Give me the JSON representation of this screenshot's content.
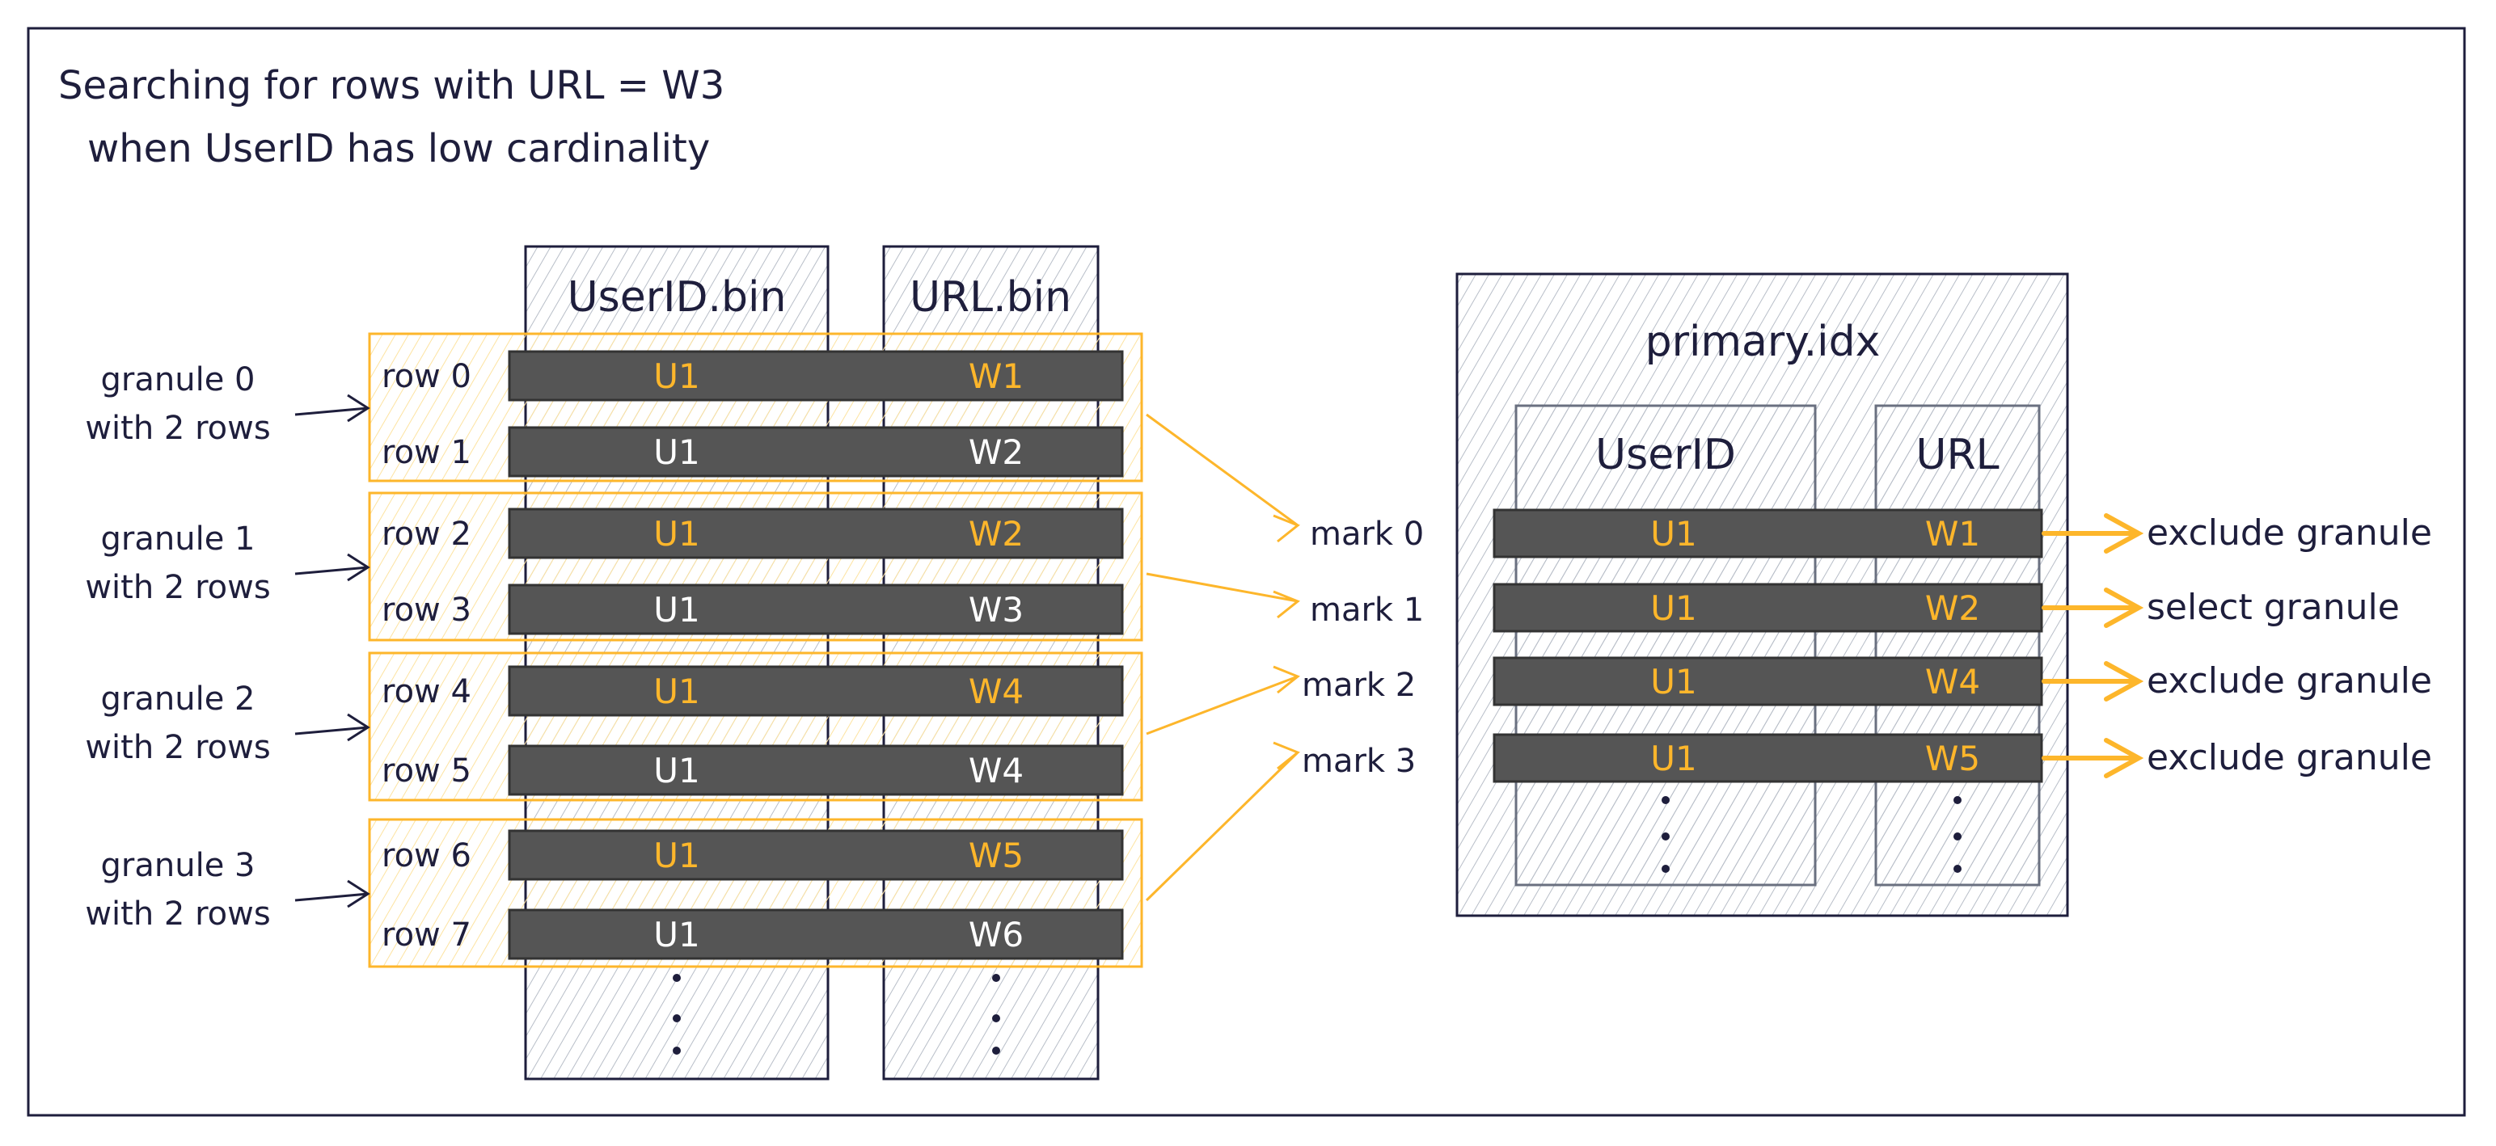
{
  "title": {
    "line1": "Searching for rows with URL = W3",
    "line2": "when UserID has low cardinality"
  },
  "columns": {
    "userid": "UserID.bin",
    "url": "URL.bin"
  },
  "rows": [
    {
      "label": "row 0",
      "userid": "U1",
      "url": "W1",
      "highlight": true
    },
    {
      "label": "row 1",
      "userid": "U1",
      "url": "W2",
      "highlight": false
    },
    {
      "label": "row 2",
      "userid": "U1",
      "url": "W2",
      "highlight": true
    },
    {
      "label": "row 3",
      "userid": "U1",
      "url": "W3",
      "highlight": false
    },
    {
      "label": "row 4",
      "userid": "U1",
      "url": "W4",
      "highlight": true
    },
    {
      "label": "row 5",
      "userid": "U1",
      "url": "W4",
      "highlight": false
    },
    {
      "label": "row 6",
      "userid": "U1",
      "url": "W5",
      "highlight": true
    },
    {
      "label": "row 7",
      "userid": "U1",
      "url": "W6",
      "highlight": false
    }
  ],
  "granules": [
    {
      "line1": "granule 0",
      "line2": "with 2 rows"
    },
    {
      "line1": "granule 1",
      "line2": "with 2 rows"
    },
    {
      "line1": "granule 2",
      "line2": "with 2 rows"
    },
    {
      "line1": "granule 3",
      "line2": "with 2 rows"
    }
  ],
  "marks": [
    "mark 0",
    "mark 1",
    "mark 2",
    "mark 3"
  ],
  "index": {
    "title": "primary.idx",
    "col_userid": "UserID",
    "col_url": "URL",
    "entries": [
      {
        "userid": "U1",
        "url": "W1",
        "result": "exclude granule",
        "selected": false
      },
      {
        "userid": "U1",
        "url": "W2",
        "result": "select granule",
        "selected": true
      },
      {
        "userid": "U1",
        "url": "W4",
        "result": "exclude granule",
        "selected": false
      },
      {
        "userid": "U1",
        "url": "W5",
        "result": "exclude granule",
        "selected": false
      }
    ]
  },
  "colors": {
    "ink": "#1e1e3c",
    "accent": "#fdb62b",
    "bar": "#555555",
    "muted": "#868e96"
  }
}
